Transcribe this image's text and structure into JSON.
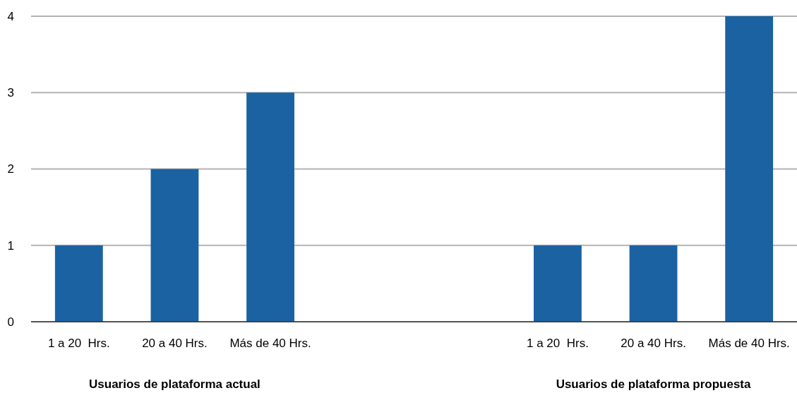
{
  "chart_data": {
    "type": "bar",
    "categories": [
      "1 a 20  Hrs.",
      "20 a 40 Hrs.",
      "Más de 40 Hrs.",
      null,
      null,
      "1 a 20  Hrs.",
      "20 a 40 Hrs.",
      "Más de 40 Hrs."
    ],
    "values": [
      1,
      2,
      3,
      null,
      null,
      1,
      1,
      4
    ],
    "color": "#1a62a2",
    "ylim": [
      0,
      4
    ],
    "yticks": [
      0,
      1,
      2,
      3,
      4
    ],
    "grid": "y",
    "annotations": [
      "Usuarios de plataforma actual",
      "Usuarios de plataforma propuesta"
    ]
  }
}
